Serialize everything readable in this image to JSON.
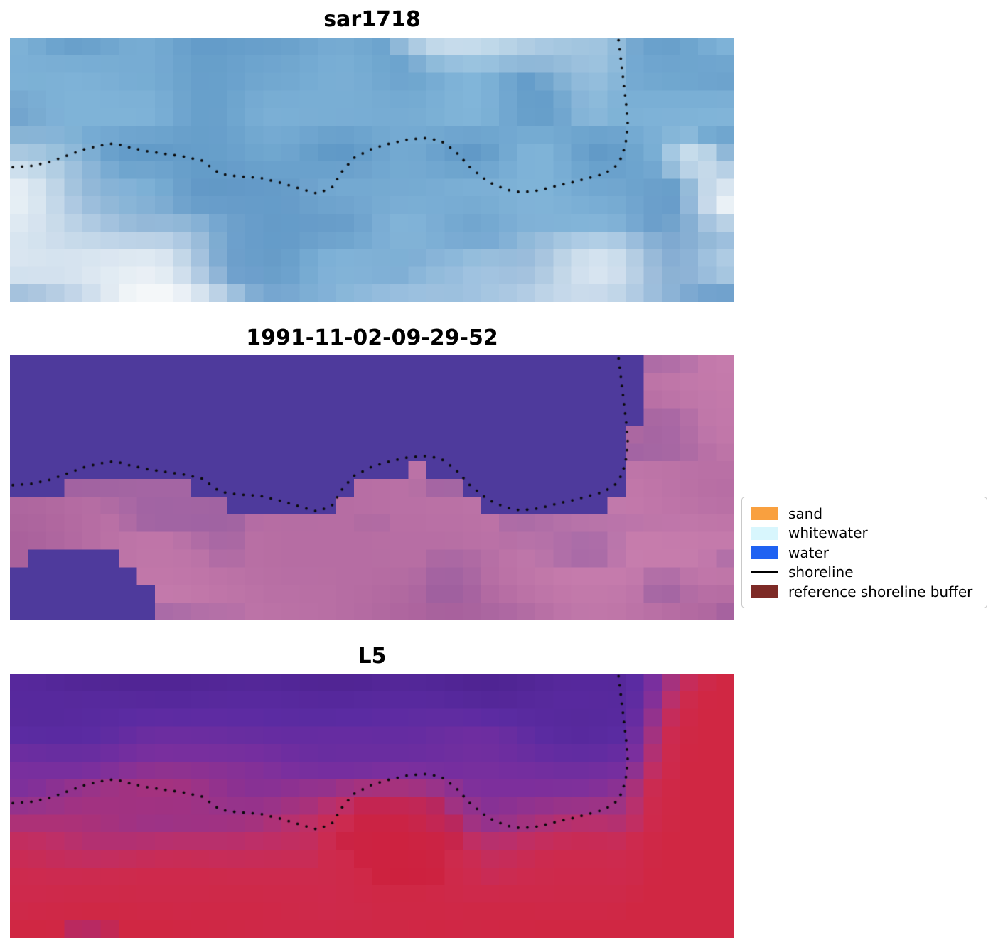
{
  "figure": {
    "background": "#ffffff",
    "panels": [
      {
        "id": "sar1718",
        "title": "sar1718"
      },
      {
        "id": "classified",
        "title": "1991-11-02-09-29-52"
      },
      {
        "id": "l5",
        "title": "L5"
      }
    ]
  },
  "legend": {
    "items": [
      {
        "label": "sand",
        "swatch": "patch",
        "color": "#f9a03f"
      },
      {
        "label": "whitewater",
        "swatch": "patch",
        "color": "#d8f6fd"
      },
      {
        "label": "water",
        "swatch": "patch",
        "color": "#1f62f2"
      },
      {
        "label": "shoreline",
        "swatch": "line",
        "color": "#000000"
      },
      {
        "label": "reference shoreline buffer",
        "swatch": "patch",
        "color": "#7d2a26"
      }
    ]
  },
  "chart_data": {
    "type": "heatmap",
    "subtype": "satellite-image-panels",
    "layout": {
      "rows": 3,
      "legend_position": "right of middle panel",
      "grid": false,
      "axes_visible": false
    },
    "panel_titles": [
      "sar1718",
      "1991-11-02-09-29-52",
      "L5"
    ],
    "legend_entries": [
      "sand",
      "whitewater",
      "water",
      "shoreline",
      "reference shoreline buffer"
    ],
    "shoreline_normalized": [
      [
        0.004,
        0.49
      ],
      [
        0.03,
        0.485
      ],
      [
        0.055,
        0.47
      ],
      [
        0.08,
        0.445
      ],
      [
        0.105,
        0.42
      ],
      [
        0.13,
        0.405
      ],
      [
        0.145,
        0.4
      ],
      [
        0.165,
        0.415
      ],
      [
        0.19,
        0.43
      ],
      [
        0.215,
        0.44
      ],
      [
        0.24,
        0.45
      ],
      [
        0.265,
        0.465
      ],
      [
        0.29,
        0.515
      ],
      [
        0.315,
        0.525
      ],
      [
        0.345,
        0.53
      ],
      [
        0.375,
        0.55
      ],
      [
        0.405,
        0.575
      ],
      [
        0.425,
        0.59
      ],
      [
        0.445,
        0.565
      ],
      [
        0.46,
        0.5
      ],
      [
        0.475,
        0.455
      ],
      [
        0.5,
        0.42
      ],
      [
        0.525,
        0.4
      ],
      [
        0.55,
        0.385
      ],
      [
        0.575,
        0.38
      ],
      [
        0.595,
        0.39
      ],
      [
        0.615,
        0.43
      ],
      [
        0.635,
        0.49
      ],
      [
        0.66,
        0.545
      ],
      [
        0.685,
        0.575
      ],
      [
        0.705,
        0.585
      ],
      [
        0.73,
        0.578
      ],
      [
        0.755,
        0.56
      ],
      [
        0.78,
        0.545
      ],
      [
        0.8,
        0.53
      ],
      [
        0.82,
        0.515
      ],
      [
        0.835,
        0.49
      ],
      [
        0.845,
        0.45
      ],
      [
        0.85,
        0.4
      ],
      [
        0.853,
        0.33
      ],
      [
        0.851,
        0.26
      ],
      [
        0.848,
        0.19
      ],
      [
        0.845,
        0.12
      ],
      [
        0.842,
        0.05
      ],
      [
        0.84,
        0.005
      ]
    ]
  },
  "render": {
    "grid": {
      "cols": 40,
      "rows": 15
    },
    "shoreline_dot_color": "#0a0a0a",
    "sar": {
      "blue_dark": "#5f98c6",
      "blue_light": "#84b7da",
      "lavender": "#93a3d0",
      "white": "#f4f7f9"
    },
    "classified": {
      "water": "#4e3a9c",
      "land_dark": "#a8609b",
      "land_light": "#c97fae",
      "land_purple": "#7b4f9e",
      "blob_boundary": [
        [
          0,
          0.8
        ],
        [
          0.03,
          0.77
        ],
        [
          0.06,
          0.745
        ],
        [
          0.1,
          0.74
        ],
        [
          0.13,
          0.755
        ],
        [
          0.16,
          0.79
        ],
        [
          0.185,
          0.85
        ],
        [
          0.205,
          0.95
        ],
        [
          0.22,
          1.01
        ]
      ]
    },
    "l5": {
      "stops": [
        [
          0,
          "#4f2492"
        ],
        [
          0.2,
          "#5b2ba2"
        ],
        [
          0.38,
          "#7a2f9e"
        ],
        [
          0.5,
          "#9a3388"
        ],
        [
          0.62,
          "#bd2f68"
        ],
        [
          0.75,
          "#cd2a4e"
        ],
        [
          1,
          "#d02743"
        ]
      ],
      "purple_patch": "#7e2fa8",
      "hot_red": "#c81734"
    }
  }
}
